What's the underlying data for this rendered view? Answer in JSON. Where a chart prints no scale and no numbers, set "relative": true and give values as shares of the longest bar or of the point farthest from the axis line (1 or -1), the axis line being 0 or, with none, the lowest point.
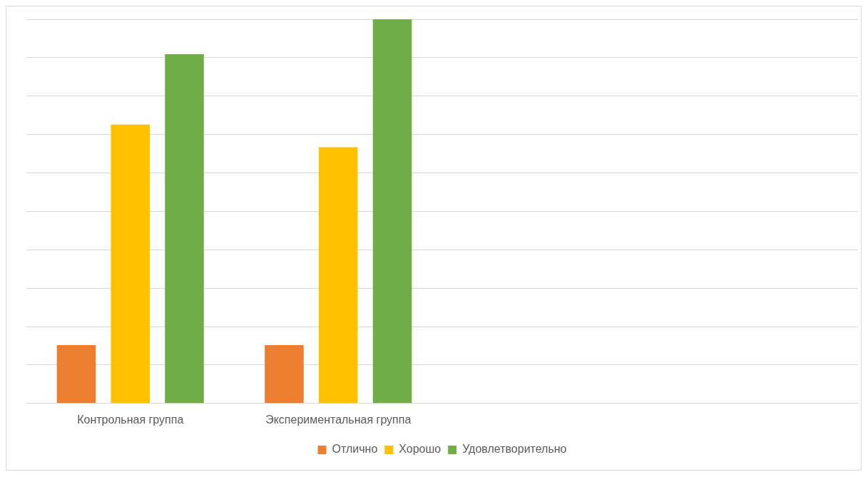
{
  "chart_data": {
    "type": "bar",
    "relative": true,
    "categories": [
      "Контрольная группа",
      "Экспериментальная группа",
      null,
      null
    ],
    "series": [
      {
        "name": "Отлично",
        "color": "#ed7d31",
        "values": [
          0.152,
          0.152,
          null,
          null
        ]
      },
      {
        "name": "Хорошо",
        "color": "#ffc000",
        "values": [
          0.726,
          0.667,
          null,
          null
        ]
      },
      {
        "name": "Удовлетворительно",
        "color": "#70ad47",
        "values": [
          0.909,
          1,
          null,
          null
        ]
      }
    ],
    "grid": "y",
    "legend": "bottom"
  }
}
